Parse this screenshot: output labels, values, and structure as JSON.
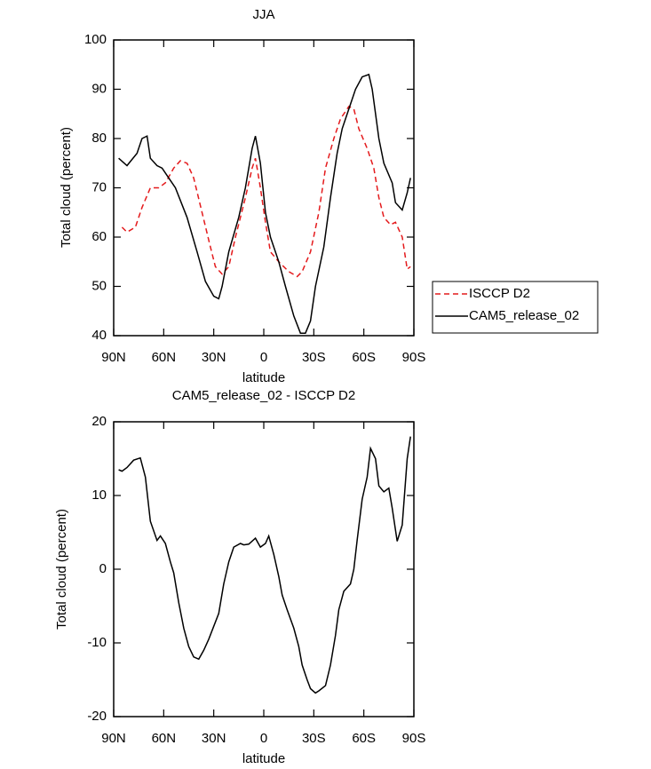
{
  "chart_data": [
    {
      "type": "line",
      "title": "JJA",
      "xlabel": "latitude",
      "ylabel": "Total cloud (percent)",
      "xlim": [
        90,
        -90
      ],
      "ylim": [
        40,
        100
      ],
      "xticks": [
        {
          "value": 90,
          "label": "90N"
        },
        {
          "value": 60,
          "label": "60N"
        },
        {
          "value": 30,
          "label": "30N"
        },
        0,
        {
          "value": -30,
          "label": "30S"
        },
        {
          "value": -60,
          "label": "60S"
        },
        {
          "value": -90,
          "label": "90S"
        }
      ],
      "yticks": [
        40,
        50,
        60,
        70,
        80,
        90,
        100
      ],
      "legend": "right",
      "series": [
        {
          "name": "ISCCP D2",
          "color": "#e41a1c",
          "dash": true,
          "x": [
            85,
            82,
            77,
            73,
            68,
            63,
            59,
            54,
            50,
            46,
            42,
            37,
            32,
            29,
            25,
            21,
            17,
            11,
            7,
            5,
            2,
            -1,
            -4,
            -9,
            -15,
            -20,
            -23,
            -28,
            -33,
            -37,
            -42,
            -46,
            -51,
            -54,
            -57,
            -62,
            -66,
            -69,
            -72,
            -76,
            -79,
            -83,
            -86,
            -88
          ],
          "values": [
            62,
            61,
            62,
            66,
            70,
            70,
            71,
            74,
            75.5,
            75,
            72,
            65,
            58,
            54,
            52.5,
            54,
            60,
            68,
            74,
            76,
            70,
            63,
            57,
            55,
            53,
            52,
            53,
            57,
            65,
            74,
            80,
            84,
            86.5,
            86,
            82,
            78,
            74,
            68,
            64,
            62.5,
            63,
            60,
            53.5,
            54
          ]
        },
        {
          "name": "CAM5_release_02",
          "color": "#000000",
          "dash": false,
          "x": [
            87,
            82,
            76,
            73,
            70,
            68,
            64,
            61,
            57,
            53,
            46,
            40,
            35,
            30,
            27,
            25,
            21,
            15,
            11,
            7,
            5,
            2,
            -1,
            -4,
            -9,
            -13,
            -18,
            -22,
            -25,
            -28,
            -31,
            -36,
            -40,
            -44,
            -47,
            -51,
            -55,
            -59,
            -63,
            -65,
            -69,
            -72,
            -77,
            -79,
            -83,
            -86,
            -88
          ],
          "values": [
            76,
            74.5,
            77,
            80,
            80.5,
            76,
            74.5,
            74,
            72,
            70,
            64,
            57,
            51,
            48,
            47.5,
            50,
            57,
            64,
            70,
            78,
            80.5,
            75,
            65,
            60,
            55,
            50,
            44,
            40.5,
            40.5,
            43,
            50,
            58,
            68,
            77,
            82,
            86,
            90,
            92.5,
            93,
            90,
            80,
            75,
            71,
            67,
            65.5,
            69,
            72
          ]
        }
      ]
    },
    {
      "type": "line",
      "title": "CAM5_release_02 - ISCCP D2",
      "xlabel": "latitude",
      "ylabel": "Total cloud (percent)",
      "xlim": [
        90,
        -90
      ],
      "ylim": [
        -20,
        20
      ],
      "xticks": [
        {
          "value": 90,
          "label": "90N"
        },
        {
          "value": 60,
          "label": "60N"
        },
        {
          "value": 30,
          "label": "30N"
        },
        0,
        {
          "value": -30,
          "label": "30S"
        },
        {
          "value": -60,
          "label": "60S"
        },
        {
          "value": -90,
          "label": "90S"
        }
      ],
      "yticks": [
        -20,
        -10,
        0,
        10,
        20
      ],
      "color": "#000000",
      "x": [
        87,
        85,
        82,
        78,
        74,
        71,
        68,
        64,
        62,
        59,
        56,
        54,
        51,
        48,
        45,
        42,
        39,
        36,
        33,
        27,
        24,
        21,
        18,
        14,
        12,
        9,
        5,
        2,
        -1,
        -3,
        -6,
        -9,
        -11,
        -14,
        -18,
        -21,
        -23,
        -26,
        -28,
        -31,
        -33,
        -37,
        -40,
        -43,
        -45,
        -48,
        -52,
        -54,
        -56,
        -59,
        -62,
        -64,
        -67,
        -69,
        -72,
        -75,
        -77,
        -80,
        -83,
        -86,
        -88
      ],
      "values": [
        13.5,
        13.3,
        13.8,
        14.8,
        15.1,
        12.5,
        6.5,
        3.9,
        4.5,
        3.5,
        1,
        -0.5,
        -4.5,
        -8,
        -10.5,
        -11.9,
        -12.2,
        -11,
        -9.5,
        -6,
        -2,
        1,
        3,
        3.5,
        3.3,
        3.4,
        4.2,
        3,
        3.5,
        4.5,
        2,
        -1,
        -3.5,
        -5.5,
        -8,
        -10.5,
        -13,
        -15,
        -16.2,
        -16.8,
        -16.5,
        -15.8,
        -13,
        -9,
        -5.5,
        -3,
        -2,
        0,
        4,
        9.5,
        12.5,
        16.4,
        15,
        11.3,
        10.5,
        11,
        8.3,
        3.8,
        6,
        15,
        18
      ]
    }
  ]
}
